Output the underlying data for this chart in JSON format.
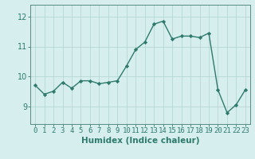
{
  "x": [
    0,
    1,
    2,
    3,
    4,
    5,
    6,
    7,
    8,
    9,
    10,
    11,
    12,
    13,
    14,
    15,
    16,
    17,
    18,
    19,
    20,
    21,
    22,
    23
  ],
  "y": [
    9.7,
    9.4,
    9.5,
    9.8,
    9.6,
    9.85,
    9.85,
    9.75,
    9.8,
    9.85,
    10.35,
    10.9,
    11.15,
    11.75,
    11.85,
    11.25,
    11.35,
    11.35,
    11.3,
    11.45,
    9.55,
    8.78,
    9.05,
    9.55
  ],
  "line_color": "#2e7b6e",
  "marker": "D",
  "marker_size": 2.2,
  "line_width": 1.0,
  "bg_color": "#d6efee",
  "grid_color": "#b5d8d4",
  "xlabel": "Humidex (Indice chaleur)",
  "xlabel_fontsize": 7.5,
  "tick_fontsize": 6.5,
  "yticks": [
    9,
    10,
    11,
    12
  ],
  "ylim": [
    8.4,
    12.4
  ],
  "xlim": [
    -0.5,
    23.5
  ],
  "spine_color": "#5a8a85"
}
